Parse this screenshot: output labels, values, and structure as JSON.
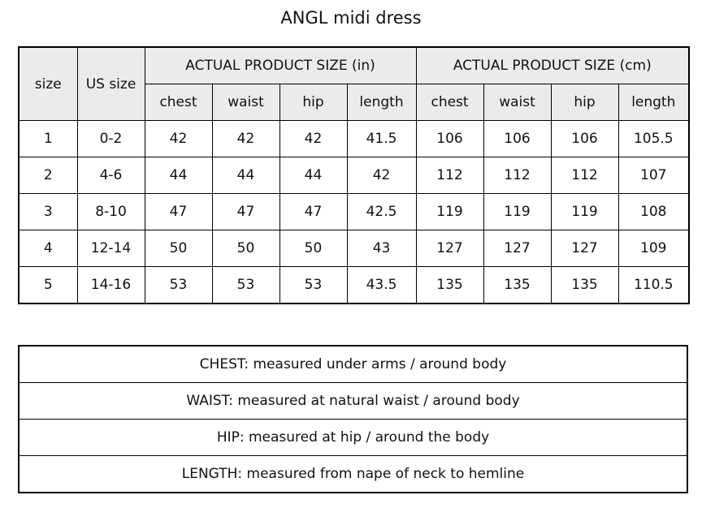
{
  "title": "ANGL midi dress",
  "size_table": {
    "headers": {
      "size": "size",
      "us_size": "US size",
      "group_in": "ACTUAL PRODUCT SIZE (in)",
      "group_cm": "ACTUAL PRODUCT SIZE (cm)",
      "sub": [
        "chest",
        "waist",
        "hip",
        "length",
        "chest",
        "waist",
        "hip",
        "length"
      ]
    },
    "rows": [
      [
        "1",
        "0-2",
        "42",
        "42",
        "42",
        "41.5",
        "106",
        "106",
        "106",
        "105.5"
      ],
      [
        "2",
        "4-6",
        "44",
        "44",
        "44",
        "42",
        "112",
        "112",
        "112",
        "107"
      ],
      [
        "3",
        "8-10",
        "47",
        "47",
        "47",
        "42.5",
        "119",
        "119",
        "119",
        "108"
      ],
      [
        "4",
        "12-14",
        "50",
        "50",
        "50",
        "43",
        "127",
        "127",
        "127",
        "109"
      ],
      [
        "5",
        "14-16",
        "53",
        "53",
        "53",
        "43.5",
        "135",
        "135",
        "135",
        "110.5"
      ]
    ]
  },
  "notes": [
    "CHEST: measured under arms / around body",
    "WAIST: measured at natural waist / around body",
    "HIP: measured at hip / around the body",
    "LENGTH: measured from nape of neck to hemline"
  ]
}
